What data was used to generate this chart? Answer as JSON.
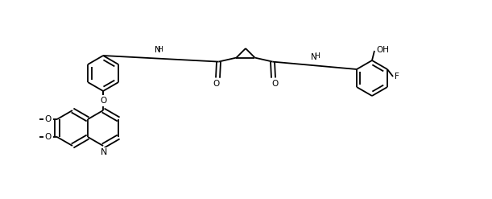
{
  "bg": "#ffffff",
  "lc": "#000000",
  "lw": 1.3,
  "fs": 7.5,
  "fig_w": 6.11,
  "fig_h": 2.47,
  "dpi": 100,
  "r": 0.2,
  "xlim": [
    0.0,
    6.11
  ],
  "ylim": [
    0.0,
    2.47
  ]
}
